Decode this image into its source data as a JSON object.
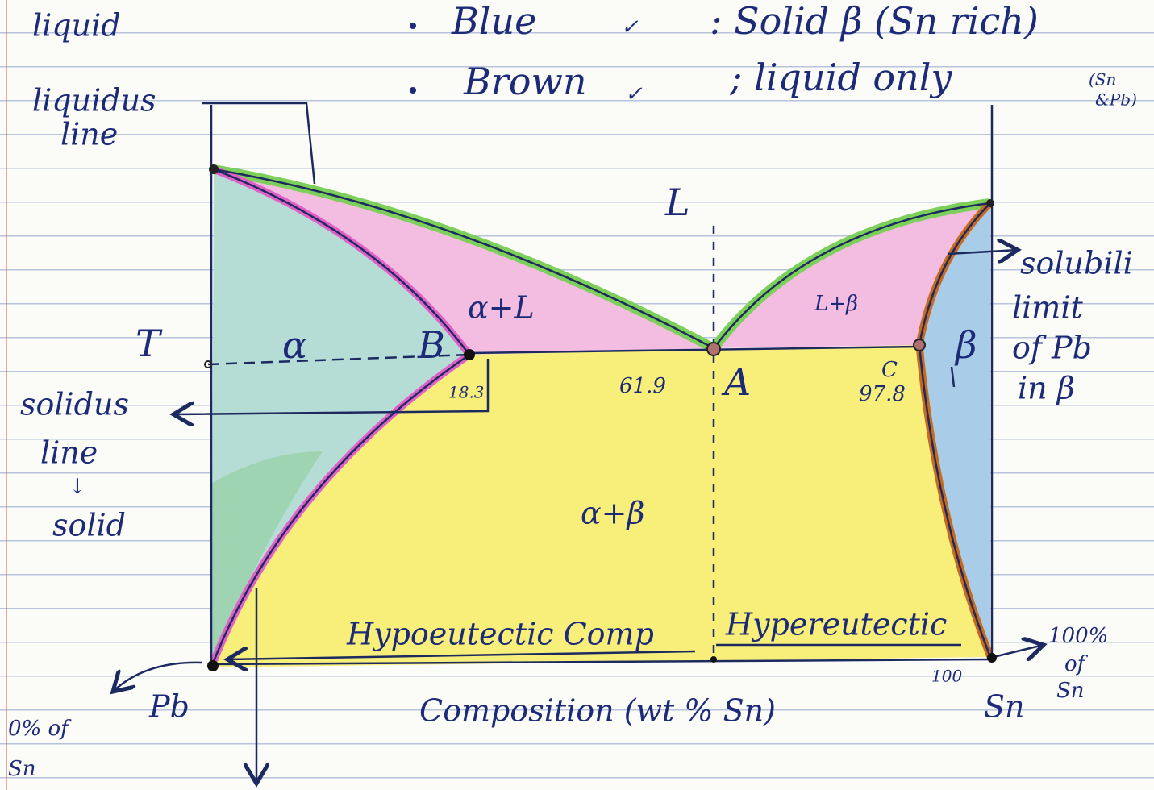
{
  "top_note": "liquid",
  "legend": [
    {
      "key": "Blue",
      "tick": "✓",
      "meaning": ": Solid β (Sn rich)"
    },
    {
      "key": "Brown",
      "tick": "✓",
      "meaning": "; liquid only",
      "meaning_small": [
        "(Sn",
        "&Pb)"
      ]
    }
  ],
  "liquidus_label": [
    "liquidus",
    "line"
  ],
  "solidus_label": [
    "solidus",
    "line",
    "↓",
    "solid"
  ],
  "solubility_label": [
    "solubili",
    "limit",
    "of Pb",
    "in β"
  ],
  "phases": {
    "L": "L",
    "alpha_L": "α+L",
    "L_beta": "L+β",
    "alpha": "α",
    "beta": "β",
    "alpha_beta": "α+β"
  },
  "points": {
    "T": "T",
    "B": "B",
    "A": "A",
    "C": "C"
  },
  "compositions": {
    "B": 18.3,
    "A": 61.9,
    "C": 97.8
  },
  "hypo": "Hypoeutectic Comp",
  "hyper": "Hypereutectic",
  "right_end": {
    "pct": "100%",
    "of": "of",
    "sn_small": "Sn",
    "hundred": "100",
    "element": "Sn"
  },
  "left_end": {
    "pct": "0% of",
    "sn": "Sn",
    "element": "Pb"
  },
  "x_axis": "Composition (wt % Sn)"
}
